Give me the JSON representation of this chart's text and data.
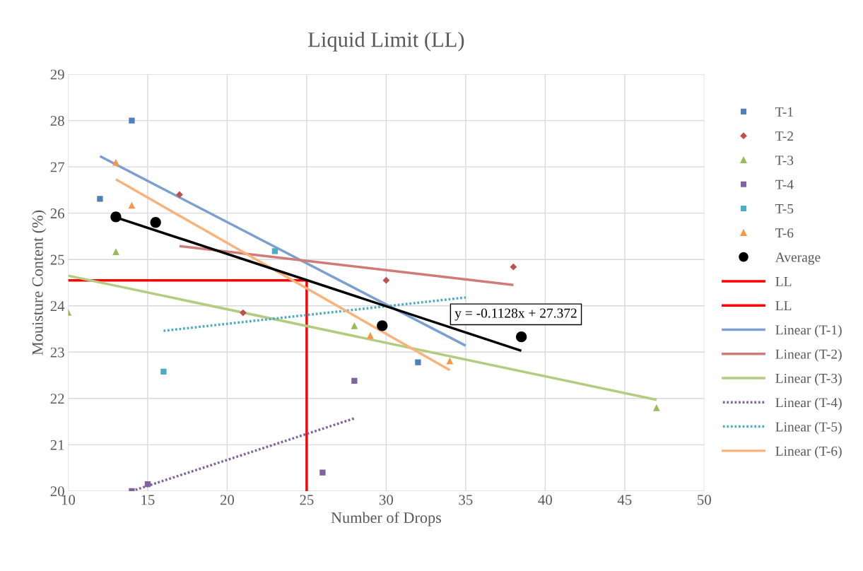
{
  "chart_data": {
    "type": "scatter",
    "title": "Liquid Limit (LL)",
    "xlabel": "Number of Drops",
    "ylabel": "Mouisture Content (%)",
    "xlim": [
      10,
      50
    ],
    "xticks": [
      10,
      15,
      20,
      25,
      30,
      35,
      40,
      45,
      50
    ],
    "ylim": [
      20,
      29
    ],
    "yticks": [
      20,
      21,
      22,
      23,
      24,
      25,
      26,
      27,
      28,
      29
    ],
    "grid": true,
    "legend": "right",
    "series": [
      {
        "name": "T-1",
        "marker": "square",
        "color": "#4f81bd",
        "x": [
          12,
          14,
          32
        ],
        "values": [
          26.31,
          28.0,
          22.78
        ]
      },
      {
        "name": "T-2",
        "marker": "diamond",
        "color": "#c0504d",
        "x": [
          17,
          21,
          30,
          38
        ],
        "values": [
          26.4,
          23.85,
          24.55,
          24.84
        ]
      },
      {
        "name": "T-3",
        "marker": "triangle",
        "color": "#9bbb59",
        "x": [
          10,
          13,
          28,
          47
        ],
        "values": [
          23.86,
          25.17,
          23.57,
          21.8
        ]
      },
      {
        "name": "T-4",
        "marker": "square",
        "color": "#8064a2",
        "x": [
          14,
          15,
          26,
          28
        ],
        "values": [
          20.0,
          20.15,
          20.4,
          22.38
        ]
      },
      {
        "name": "T-5",
        "marker": "square",
        "color": "#4bacc6",
        "x": [
          16,
          23
        ],
        "values": [
          22.58,
          25.18
        ]
      },
      {
        "name": "T-6",
        "marker": "triangle",
        "color": "#f79646",
        "x": [
          13,
          14,
          29,
          34
        ],
        "values": [
          27.1,
          26.17,
          23.36,
          22.81
        ]
      },
      {
        "name": "Average",
        "marker": "circle",
        "color": "#000000",
        "x": [
          13,
          15.5,
          29.75,
          38.5
        ],
        "values": [
          25.92,
          25.8,
          23.57,
          23.33
        ]
      },
      {
        "name": "LL",
        "type": "line",
        "line_style": "solid",
        "color": "#ff0000",
        "x": [
          10,
          25
        ],
        "values": [
          24.55,
          24.55
        ]
      },
      {
        "name": "LL",
        "type": "line",
        "line_style": "solid",
        "color": "#ff0000",
        "x": [
          25,
          25
        ],
        "values": [
          20,
          24.55
        ]
      },
      {
        "name": "Linear (T-1)",
        "type": "line",
        "line_style": "solid",
        "color": "#7ba0cf",
        "x": [
          12,
          35
        ],
        "values": [
          27.23,
          23.14
        ]
      },
      {
        "name": "Linear (T-2)",
        "type": "line",
        "line_style": "solid",
        "color": "#d07b78",
        "x": [
          17,
          38
        ],
        "values": [
          25.29,
          24.45
        ]
      },
      {
        "name": "Linear (T-3)",
        "type": "line",
        "line_style": "solid",
        "color": "#b3cc80",
        "x": [
          10,
          47
        ],
        "values": [
          24.65,
          21.97
        ]
      },
      {
        "name": "Linear (T-4)",
        "type": "line",
        "line_style": "dotted",
        "color": "#8064a2",
        "x": [
          14,
          28
        ],
        "values": [
          20.0,
          21.57
        ]
      },
      {
        "name": "Linear (T-5)",
        "type": "line",
        "line_style": "dotted",
        "color": "#4bacc6",
        "x": [
          16,
          35
        ],
        "values": [
          23.46,
          24.18
        ]
      },
      {
        "name": "Linear (T-6)",
        "type": "line",
        "line_style": "solid",
        "color": "#f9b27a",
        "x": [
          13,
          34
        ],
        "values": [
          26.73,
          22.61
        ]
      },
      {
        "type": "line",
        "line_style": "solid",
        "color": "#000000",
        "x": [
          13,
          38.5
        ],
        "values": [
          25.91,
          23.03
        ]
      }
    ],
    "annotations": [
      "y = -0.1128x + 27.372"
    ]
  }
}
